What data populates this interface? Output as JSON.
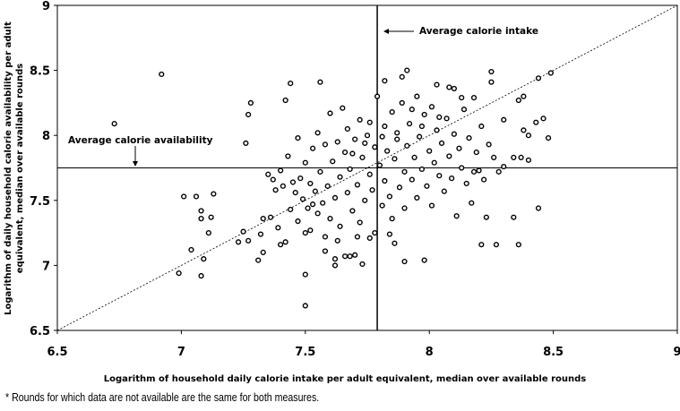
{
  "chart_data": {
    "type": "scatter",
    "xlabel": "Logarithm of household daily calorie intake per adult equivalent, median over available rounds",
    "ylabel_lines": [
      "Logarithm of daily household calorie availability per adult",
      "equivalent, median over available rounds"
    ],
    "xlim": [
      6.5,
      9
    ],
    "ylim": [
      6.5,
      9
    ],
    "x_ticks": [
      "6.5",
      "7",
      "7.5",
      "8",
      "8.5",
      "9"
    ],
    "y_ticks": [
      "6.5",
      "7",
      "7.5",
      "8",
      "8.5",
      "9"
    ],
    "grid": false,
    "reference_lines": {
      "average_calorie_intake_x": 7.79,
      "average_calorie_availability_y": 7.75,
      "diagonal": "y = x (dotted)"
    },
    "annotations": {
      "intake": "Average calorie intake",
      "availability": "Average calorie availability"
    },
    "marker": "hollow circle",
    "points": [
      [
        6.73,
        8.09
      ],
      [
        6.92,
        8.47
      ],
      [
        6.99,
        6.94
      ],
      [
        7.01,
        7.53
      ],
      [
        7.04,
        7.12
      ],
      [
        7.06,
        7.53
      ],
      [
        7.08,
        7.42
      ],
      [
        7.08,
        7.36
      ],
      [
        7.09,
        7.05
      ],
      [
        7.08,
        6.92
      ],
      [
        7.11,
        7.25
      ],
      [
        7.13,
        7.55
      ],
      [
        7.12,
        7.37
      ],
      [
        7.23,
        7.18
      ],
      [
        7.25,
        7.26
      ],
      [
        7.27,
        7.19
      ],
      [
        7.26,
        7.94
      ],
      [
        7.27,
        8.16
      ],
      [
        7.28,
        8.25
      ],
      [
        7.31,
        7.04
      ],
      [
        7.32,
        7.24
      ],
      [
        7.33,
        7.1
      ],
      [
        7.33,
        7.36
      ],
      [
        7.36,
        7.37
      ],
      [
        7.39,
        7.29
      ],
      [
        7.4,
        7.16
      ],
      [
        7.42,
        7.18
      ],
      [
        7.44,
        7.43
      ],
      [
        7.42,
        8.27
      ],
      [
        7.44,
        8.4
      ],
      [
        7.5,
        6.69
      ],
      [
        7.5,
        6.93
      ],
      [
        7.5,
        7.25
      ],
      [
        7.52,
        7.27
      ],
      [
        7.56,
        8.41
      ],
      [
        7.58,
        7.11
      ],
      [
        7.62,
        7.05
      ],
      [
        7.62,
        7.0
      ],
      [
        7.66,
        7.07
      ],
      [
        7.68,
        7.07
      ],
      [
        7.7,
        7.08
      ],
      [
        7.73,
        7.01
      ],
      [
        7.86,
        7.17
      ],
      [
        7.9,
        7.03
      ],
      [
        7.98,
        7.04
      ],
      [
        8.21,
        7.16
      ],
      [
        8.27,
        7.16
      ],
      [
        8.36,
        7.16
      ],
      [
        8.34,
        7.37
      ],
      [
        8.44,
        7.44
      ],
      [
        7.89,
        8.45
      ],
      [
        7.91,
        8.5
      ],
      [
        7.82,
        8.42
      ],
      [
        8.03,
        8.39
      ],
      [
        8.08,
        8.37
      ],
      [
        8.1,
        8.36
      ],
      [
        8.25,
        8.49
      ],
      [
        8.25,
        8.41
      ],
      [
        8.44,
        8.44
      ],
      [
        8.49,
        8.48
      ],
      [
        8.13,
        8.29
      ],
      [
        8.18,
        8.29
      ],
      [
        8.36,
        8.27
      ],
      [
        8.38,
        8.3
      ],
      [
        8.43,
        8.1
      ],
      [
        8.46,
        8.13
      ],
      [
        8.38,
        8.04
      ],
      [
        8.4,
        8.0
      ],
      [
        8.48,
        7.98
      ],
      [
        8.3,
        8.12
      ],
      [
        8.34,
        7.83
      ],
      [
        8.37,
        7.83
      ],
      [
        8.4,
        7.81
      ],
      [
        8.3,
        7.76
      ],
      [
        8.18,
        7.72
      ],
      [
        8.2,
        7.73
      ],
      [
        8.26,
        7.83
      ],
      [
        8.24,
        7.93
      ],
      [
        7.35,
        7.7
      ],
      [
        7.37,
        7.66
      ],
      [
        7.38,
        7.58
      ],
      [
        7.4,
        7.73
      ],
      [
        7.41,
        7.61
      ],
      [
        7.43,
        7.84
      ],
      [
        7.45,
        7.64
      ],
      [
        7.46,
        7.56
      ],
      [
        7.47,
        7.98
      ],
      [
        7.48,
        7.67
      ],
      [
        7.49,
        7.51
      ],
      [
        7.5,
        7.79
      ],
      [
        7.51,
        7.44
      ],
      [
        7.52,
        7.63
      ],
      [
        7.53,
        7.9
      ],
      [
        7.54,
        7.57
      ],
      [
        7.55,
        7.4
      ],
      [
        7.55,
        8.02
      ],
      [
        7.56,
        7.72
      ],
      [
        7.57,
        7.48
      ],
      [
        7.58,
        7.93
      ],
      [
        7.59,
        7.61
      ],
      [
        7.6,
        7.36
      ],
      [
        7.6,
        8.17
      ],
      [
        7.61,
        7.8
      ],
      [
        7.62,
        7.52
      ],
      [
        7.63,
        7.95
      ],
      [
        7.64,
        7.68
      ],
      [
        7.64,
        7.3
      ],
      [
        7.65,
        8.21
      ],
      [
        7.66,
        7.87
      ],
      [
        7.67,
        7.56
      ],
      [
        7.67,
        8.05
      ],
      [
        7.68,
        7.74
      ],
      [
        7.69,
        7.42
      ],
      [
        7.7,
        7.97
      ],
      [
        7.71,
        7.62
      ],
      [
        7.72,
        8.12
      ],
      [
        7.72,
        7.33
      ],
      [
        7.73,
        7.83
      ],
      [
        7.74,
        7.5
      ],
      [
        7.75,
        8.0
      ],
      [
        7.76,
        7.7
      ],
      [
        7.77,
        7.58
      ],
      [
        7.78,
        7.91
      ],
      [
        7.78,
        7.25
      ],
      [
        7.79,
        8.3
      ],
      [
        7.8,
        7.77
      ],
      [
        7.81,
        7.46
      ],
      [
        7.82,
        8.07
      ],
      [
        7.82,
        7.65
      ],
      [
        7.83,
        7.88
      ],
      [
        7.84,
        7.53
      ],
      [
        7.85,
        8.18
      ],
      [
        7.85,
        7.36
      ],
      [
        7.86,
        7.82
      ],
      [
        7.87,
        7.97
      ],
      [
        7.88,
        7.6
      ],
      [
        7.89,
        8.25
      ],
      [
        7.9,
        7.72
      ],
      [
        7.9,
        7.44
      ],
      [
        7.91,
        7.92
      ],
      [
        7.92,
        8.09
      ],
      [
        7.93,
        7.66
      ],
      [
        7.94,
        7.83
      ],
      [
        7.95,
        8.3
      ],
      [
        7.95,
        7.52
      ],
      [
        7.96,
        7.99
      ],
      [
        7.97,
        7.74
      ],
      [
        7.98,
        8.16
      ],
      [
        7.99,
        7.61
      ],
      [
        8.0,
        7.88
      ],
      [
        8.01,
        8.22
      ],
      [
        8.01,
        7.46
      ],
      [
        8.02,
        7.79
      ],
      [
        8.03,
        8.04
      ],
      [
        8.04,
        7.69
      ],
      [
        8.05,
        7.94
      ],
      [
        8.06,
        7.57
      ],
      [
        8.07,
        8.13
      ],
      [
        8.08,
        7.84
      ],
      [
        8.09,
        7.67
      ],
      [
        8.1,
        8.01
      ],
      [
        8.11,
        7.38
      ],
      [
        8.12,
        7.9
      ],
      [
        8.13,
        7.75
      ],
      [
        8.14,
        8.2
      ],
      [
        8.15,
        7.63
      ],
      [
        8.16,
        7.98
      ],
      [
        8.17,
        7.48
      ],
      [
        8.19,
        7.87
      ],
      [
        8.21,
        8.07
      ],
      [
        8.22,
        7.66
      ],
      [
        8.23,
        7.37
      ],
      [
        8.28,
        7.72
      ],
      [
        7.58,
        7.22
      ],
      [
        7.63,
        7.19
      ],
      [
        7.71,
        7.22
      ],
      [
        7.76,
        7.21
      ],
      [
        7.84,
        7.24
      ],
      [
        7.47,
        7.34
      ],
      [
        7.53,
        7.47
      ],
      [
        7.69,
        7.86
      ],
      [
        7.74,
        7.94
      ],
      [
        7.76,
        8.1
      ],
      [
        7.87,
        8.02
      ],
      [
        7.93,
        8.2
      ],
      [
        7.97,
        8.07
      ],
      [
        8.04,
        8.14
      ],
      [
        7.81,
        7.99
      ]
    ]
  }
}
